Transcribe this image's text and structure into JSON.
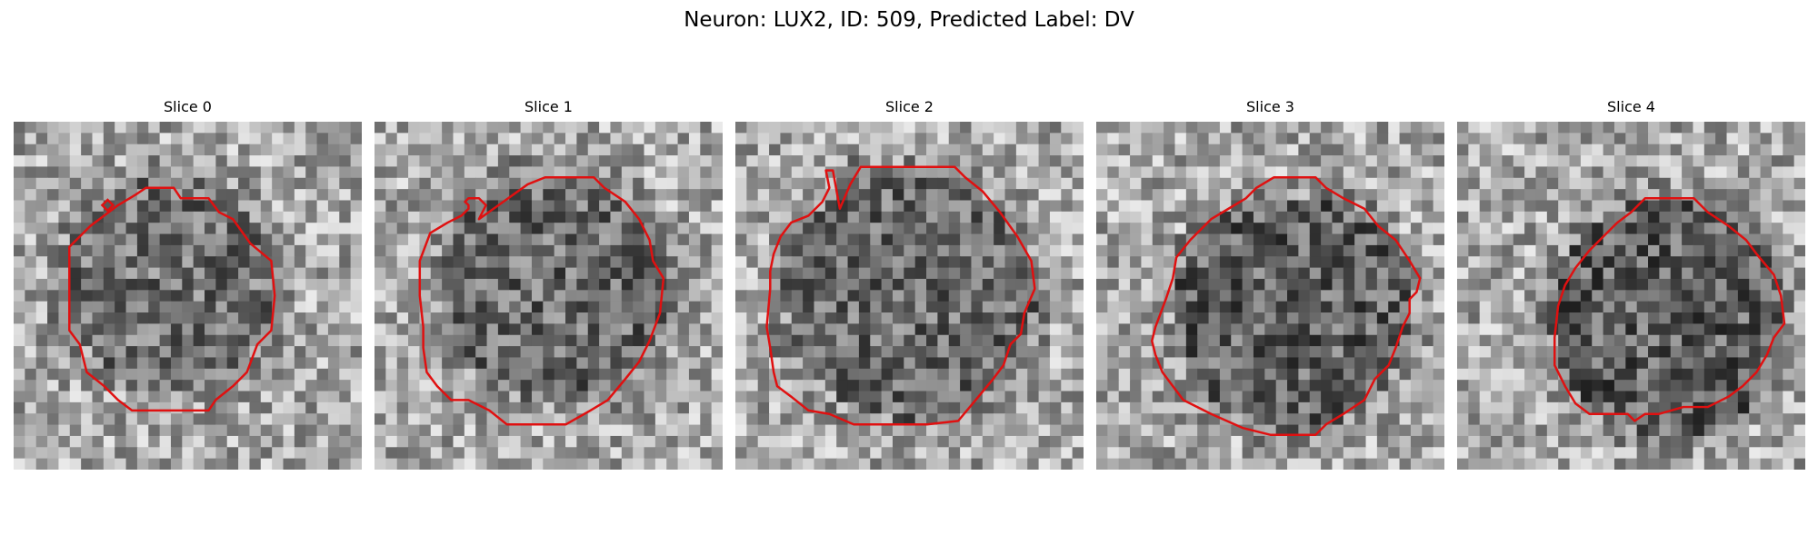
{
  "figure": {
    "title": "Neuron: LUX2, ID: 509, Predicted Label: DV"
  },
  "contour_color": "#e01010",
  "colormap": "gray",
  "slices": [
    {
      "title": "Slice 0",
      "center": [
        0.45,
        0.46
      ],
      "radius": 0.3,
      "darkness": 0.1,
      "contour": [
        [
          0.38,
          0.19
        ],
        [
          0.46,
          0.19
        ],
        [
          0.48,
          0.22
        ],
        [
          0.56,
          0.22
        ],
        [
          0.59,
          0.26
        ],
        [
          0.63,
          0.28
        ],
        [
          0.68,
          0.35
        ],
        [
          0.74,
          0.4
        ],
        [
          0.75,
          0.5
        ],
        [
          0.74,
          0.6
        ],
        [
          0.7,
          0.64
        ],
        [
          0.67,
          0.72
        ],
        [
          0.63,
          0.76
        ],
        [
          0.58,
          0.8
        ],
        [
          0.56,
          0.83
        ],
        [
          0.48,
          0.83
        ],
        [
          0.42,
          0.83
        ],
        [
          0.34,
          0.83
        ],
        [
          0.3,
          0.8
        ],
        [
          0.26,
          0.76
        ],
        [
          0.21,
          0.72
        ],
        [
          0.19,
          0.64
        ],
        [
          0.16,
          0.6
        ],
        [
          0.16,
          0.5
        ],
        [
          0.16,
          0.36
        ],
        [
          0.22,
          0.3
        ],
        [
          0.26,
          0.27
        ],
        [
          0.3,
          0.24
        ],
        [
          0.35,
          0.21
        ]
      ],
      "marker": [
        0.27,
        0.24
      ]
    },
    {
      "title": "Slice 1",
      "center": [
        0.52,
        0.48
      ],
      "radius": 0.33,
      "darkness": 0.15,
      "contour": [
        [
          0.49,
          0.16
        ],
        [
          0.63,
          0.16
        ],
        [
          0.66,
          0.19
        ],
        [
          0.72,
          0.23
        ],
        [
          0.76,
          0.28
        ],
        [
          0.79,
          0.34
        ],
        [
          0.8,
          0.4
        ],
        [
          0.83,
          0.45
        ],
        [
          0.82,
          0.55
        ],
        [
          0.79,
          0.63
        ],
        [
          0.76,
          0.69
        ],
        [
          0.72,
          0.74
        ],
        [
          0.67,
          0.8
        ],
        [
          0.62,
          0.83
        ],
        [
          0.55,
          0.87
        ],
        [
          0.49,
          0.87
        ],
        [
          0.38,
          0.87
        ],
        [
          0.33,
          0.83
        ],
        [
          0.27,
          0.8
        ],
        [
          0.22,
          0.8
        ],
        [
          0.18,
          0.76
        ],
        [
          0.15,
          0.72
        ],
        [
          0.14,
          0.65
        ],
        [
          0.14,
          0.59
        ],
        [
          0.13,
          0.5
        ],
        [
          0.13,
          0.4
        ],
        [
          0.16,
          0.32
        ],
        [
          0.21,
          0.29
        ],
        [
          0.25,
          0.27
        ],
        [
          0.27,
          0.25
        ],
        [
          0.27,
          0.24
        ],
        [
          0.26,
          0.23
        ],
        [
          0.27,
          0.22
        ],
        [
          0.3,
          0.22
        ],
        [
          0.32,
          0.24
        ],
        [
          0.3,
          0.28
        ],
        [
          0.37,
          0.23
        ],
        [
          0.44,
          0.18
        ]
      ]
    },
    {
      "title": "Slice 2",
      "center": [
        0.5,
        0.5
      ],
      "radius": 0.36,
      "darkness": 0.15,
      "contour": [
        [
          0.36,
          0.13
        ],
        [
          0.41,
          0.13
        ],
        [
          0.55,
          0.13
        ],
        [
          0.63,
          0.13
        ],
        [
          0.66,
          0.16
        ],
        [
          0.71,
          0.2
        ],
        [
          0.76,
          0.26
        ],
        [
          0.81,
          0.33
        ],
        [
          0.85,
          0.4
        ],
        [
          0.86,
          0.48
        ],
        [
          0.83,
          0.55
        ],
        [
          0.82,
          0.61
        ],
        [
          0.79,
          0.64
        ],
        [
          0.77,
          0.7
        ],
        [
          0.74,
          0.74
        ],
        [
          0.69,
          0.8
        ],
        [
          0.64,
          0.86
        ],
        [
          0.55,
          0.87
        ],
        [
          0.53,
          0.87
        ],
        [
          0.41,
          0.87
        ],
        [
          0.34,
          0.87
        ],
        [
          0.27,
          0.84
        ],
        [
          0.21,
          0.83
        ],
        [
          0.16,
          0.79
        ],
        [
          0.12,
          0.76
        ],
        [
          0.11,
          0.72
        ],
        [
          0.1,
          0.65
        ],
        [
          0.09,
          0.59
        ],
        [
          0.1,
          0.48
        ],
        [
          0.1,
          0.43
        ],
        [
          0.11,
          0.38
        ],
        [
          0.13,
          0.33
        ],
        [
          0.16,
          0.29
        ],
        [
          0.21,
          0.27
        ],
        [
          0.25,
          0.23
        ],
        [
          0.27,
          0.19
        ],
        [
          0.26,
          0.14
        ],
        [
          0.28,
          0.14
        ],
        [
          0.3,
          0.25
        ],
        [
          0.33,
          0.18
        ]
      ]
    },
    {
      "title": "Slice 3",
      "center": [
        0.56,
        0.55
      ],
      "radius": 0.34,
      "darkness": 0.22,
      "contour": [
        [
          0.51,
          0.16
        ],
        [
          0.63,
          0.16
        ],
        [
          0.66,
          0.19
        ],
        [
          0.71,
          0.22
        ],
        [
          0.77,
          0.25
        ],
        [
          0.81,
          0.3
        ],
        [
          0.86,
          0.34
        ],
        [
          0.9,
          0.4
        ],
        [
          0.93,
          0.45
        ],
        [
          0.92,
          0.49
        ],
        [
          0.9,
          0.51
        ],
        [
          0.9,
          0.55
        ],
        [
          0.88,
          0.59
        ],
        [
          0.86,
          0.65
        ],
        [
          0.84,
          0.7
        ],
        [
          0.8,
          0.74
        ],
        [
          0.77,
          0.8
        ],
        [
          0.71,
          0.84
        ],
        [
          0.66,
          0.87
        ],
        [
          0.63,
          0.9
        ],
        [
          0.58,
          0.9
        ],
        [
          0.5,
          0.9
        ],
        [
          0.42,
          0.88
        ],
        [
          0.33,
          0.84
        ],
        [
          0.25,
          0.8
        ],
        [
          0.22,
          0.76
        ],
        [
          0.19,
          0.72
        ],
        [
          0.17,
          0.67
        ],
        [
          0.16,
          0.63
        ],
        [
          0.17,
          0.59
        ],
        [
          0.2,
          0.51
        ],
        [
          0.22,
          0.45
        ],
        [
          0.23,
          0.39
        ],
        [
          0.27,
          0.34
        ],
        [
          0.3,
          0.31
        ],
        [
          0.33,
          0.28
        ],
        [
          0.38,
          0.25
        ],
        [
          0.43,
          0.22
        ],
        [
          0.46,
          0.19
        ]
      ]
    },
    {
      "title": "Slice 4",
      "center": [
        0.61,
        0.56
      ],
      "radius": 0.34,
      "darkness": 0.25,
      "contour": [
        [
          0.54,
          0.22
        ],
        [
          0.68,
          0.22
        ],
        [
          0.72,
          0.26
        ],
        [
          0.78,
          0.3
        ],
        [
          0.83,
          0.34
        ],
        [
          0.86,
          0.38
        ],
        [
          0.91,
          0.44
        ],
        [
          0.93,
          0.5
        ],
        [
          0.94,
          0.58
        ],
        [
          0.91,
          0.62
        ],
        [
          0.89,
          0.67
        ],
        [
          0.86,
          0.72
        ],
        [
          0.82,
          0.76
        ],
        [
          0.78,
          0.79
        ],
        [
          0.72,
          0.82
        ],
        [
          0.65,
          0.82
        ],
        [
          0.58,
          0.84
        ],
        [
          0.54,
          0.84
        ],
        [
          0.51,
          0.86
        ],
        [
          0.49,
          0.84
        ],
        [
          0.44,
          0.84
        ],
        [
          0.38,
          0.84
        ],
        [
          0.34,
          0.81
        ],
        [
          0.31,
          0.76
        ],
        [
          0.28,
          0.7
        ],
        [
          0.28,
          0.62
        ],
        [
          0.29,
          0.53
        ],
        [
          0.31,
          0.47
        ],
        [
          0.34,
          0.42
        ],
        [
          0.38,
          0.37
        ],
        [
          0.42,
          0.33
        ],
        [
          0.46,
          0.29
        ],
        [
          0.5,
          0.26
        ]
      ]
    }
  ]
}
